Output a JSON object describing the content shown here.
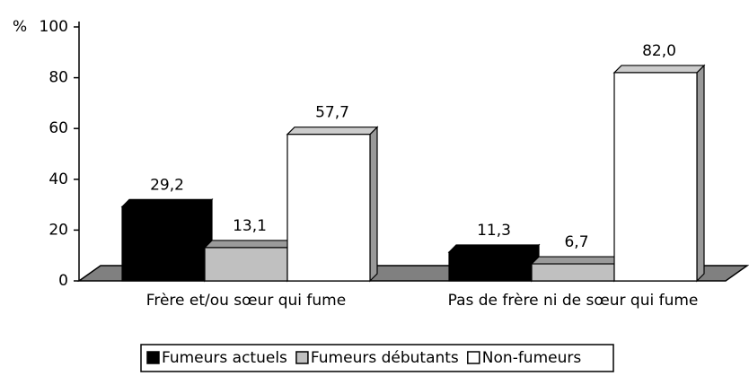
{
  "chart_data": {
    "type": "bar3d",
    "y_label": "%",
    "categories": [
      "Frère et/ou sœur qui fume",
      "Pas de frère ni de sœur qui fume"
    ],
    "series": [
      {
        "name": "Fumeurs actuels",
        "color": "#000000",
        "values": [
          29.2,
          11.3
        ],
        "value_labels": [
          "29,2",
          "11,3"
        ]
      },
      {
        "name": "Fumeurs débutants",
        "color": "#c0c0c0",
        "values": [
          13.1,
          6.7
        ],
        "value_labels": [
          "13,1",
          "6,7"
        ]
      },
      {
        "name": "Non-fumeurs",
        "color": "#ffffff",
        "values": [
          57.7,
          82.0
        ],
        "value_labels": [
          "57,7",
          "82,0"
        ]
      }
    ],
    "ylim": [
      0,
      100
    ],
    "yticks": [
      0,
      20,
      40,
      60,
      80,
      100
    ],
    "legend": "bottom"
  }
}
